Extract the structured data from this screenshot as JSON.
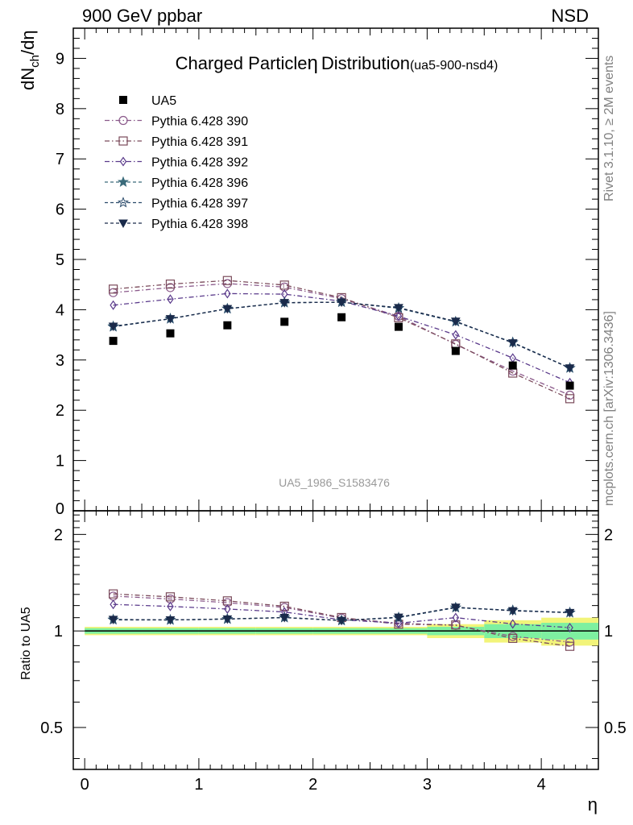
{
  "header": {
    "left": "900 GeV ppbar",
    "right": "NSD"
  },
  "chart_data": {
    "type": "line",
    "title": "Charged Particle",
    "title_symbol": "η",
    "title_rest": "Distribution",
    "title_tag": "(ua5-900-nsd4)",
    "ylabel_main": "dN",
    "ylabel_sub": "ch",
    "ylabel_tail": "/dη",
    "ylabel_ratio": "Ratio to UA5",
    "xlabel": "η",
    "xlim": [
      -0.1,
      4.5
    ],
    "ylim_main": [
      0,
      9.6
    ],
    "ylim_ratio": [
      0.37,
      2.37
    ],
    "x_ticks": [
      "0",
      "1",
      "2",
      "3",
      "4"
    ],
    "y_ticks_main": [
      "0",
      "1",
      "2",
      "3",
      "4",
      "5",
      "6",
      "7",
      "8",
      "9"
    ],
    "y_ticks_ratio": [
      "0.5",
      "1",
      "2"
    ],
    "watermark": "UA5_1986_S1583476",
    "side_text_1": "Rivet 3.1.10, ≥ 2M events",
    "side_text_2": "mcplots.cern.ch [arXiv:1306.3436]",
    "x": [
      0.25,
      0.75,
      1.25,
      1.75,
      2.25,
      2.75,
      3.25,
      3.75,
      4.25
    ],
    "data": {
      "name": "UA5",
      "values": [
        3.38,
        3.53,
        3.69,
        3.76,
        3.85,
        3.66,
        3.18,
        2.89,
        2.49
      ],
      "color": "#000000"
    },
    "band": {
      "stat_frac": [
        0.02,
        0.02,
        0.02,
        0.02,
        0.02,
        0.02,
        0.03,
        0.05,
        0.06
      ],
      "total_frac": [
        0.03,
        0.03,
        0.03,
        0.03,
        0.03,
        0.03,
        0.05,
        0.08,
        0.1
      ]
    },
    "series": [
      {
        "name": "Pythia 6.428 390",
        "color": "#8b5a8b",
        "marker": "circle-open",
        "dash": "dashdot",
        "values": [
          4.34,
          4.44,
          4.52,
          4.45,
          4.22,
          3.87,
          3.31,
          2.78,
          2.3
        ]
      },
      {
        "name": "Pythia 6.428 391",
        "color": "#7a4a5a",
        "marker": "square-open",
        "dash": "dashdot",
        "values": [
          4.41,
          4.51,
          4.58,
          4.49,
          4.24,
          3.84,
          3.32,
          2.74,
          2.23
        ]
      },
      {
        "name": "Pythia 6.428 392",
        "color": "#5a3a8b",
        "marker": "diamond-open",
        "dash": "dashdot",
        "values": [
          4.09,
          4.21,
          4.32,
          4.31,
          4.17,
          3.87,
          3.5,
          3.04,
          2.55
        ]
      },
      {
        "name": "Pythia 6.428 396",
        "color": "#3a6a7a",
        "marker": "star-filled",
        "dash": "dashed",
        "values": [
          3.67,
          3.82,
          4.02,
          4.14,
          4.15,
          4.03,
          3.76,
          3.35,
          2.84
        ]
      },
      {
        "name": "Pythia 6.428 397",
        "color": "#2a4a6a",
        "marker": "star-open",
        "dash": "dashed",
        "values": [
          3.66,
          3.82,
          4.02,
          4.14,
          4.15,
          4.03,
          3.76,
          3.35,
          2.84
        ]
      },
      {
        "name": "Pythia 6.428 398",
        "color": "#1a2a4a",
        "marker": "tri-down",
        "dash": "dashed",
        "values": [
          3.67,
          3.82,
          4.02,
          4.14,
          4.15,
          4.04,
          3.77,
          3.34,
          2.84
        ]
      }
    ],
    "colors": {
      "band_total": "#f2f47a",
      "band_stat": "#7ef0a0",
      "data_line": "#000000"
    }
  }
}
